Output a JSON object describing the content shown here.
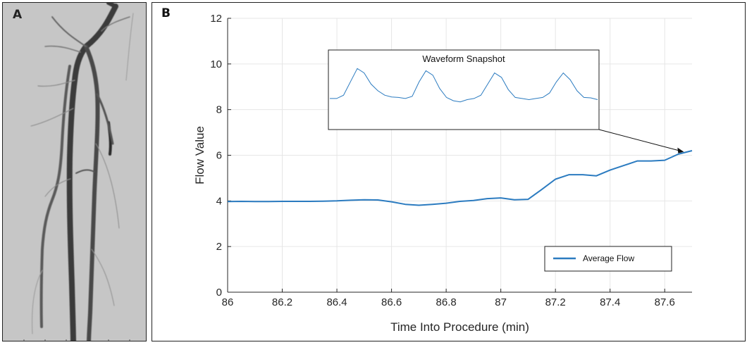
{
  "panel_a": {
    "label": "A"
  },
  "panel_b": {
    "label": "B"
  },
  "chart_data": {
    "type": "line",
    "title": "",
    "xlabel": "Time Into Procedure (min)",
    "ylabel": "Flow Value",
    "xlim": [
      86,
      87.7
    ],
    "ylim": [
      0,
      12
    ],
    "x_ticks": [
      86,
      86.2,
      86.4,
      86.6,
      86.8,
      87,
      87.2,
      87.4,
      87.6
    ],
    "x_tick_labels": [
      "86",
      "86.2",
      "86.4",
      "86.6",
      "86.8",
      "87",
      "87.2",
      "87.4",
      "87.6"
    ],
    "y_ticks": [
      0,
      2,
      4,
      6,
      8,
      10,
      12
    ],
    "y_tick_labels": [
      "0",
      "2",
      "4",
      "6",
      "8",
      "10",
      "12"
    ],
    "grid": true,
    "legend": {
      "position": "bottom-right",
      "entries": [
        "Average Flow"
      ]
    },
    "series": [
      {
        "name": "Average Flow",
        "color": "#2b7bc0",
        "x": [
          86.0,
          86.05,
          86.1,
          86.15,
          86.2,
          86.25,
          86.3,
          86.35,
          86.4,
          86.45,
          86.5,
          86.55,
          86.6,
          86.65,
          86.7,
          86.75,
          86.8,
          86.85,
          86.9,
          86.95,
          87.0,
          87.05,
          87.1,
          87.15,
          87.2,
          87.25,
          87.3,
          87.35,
          87.4,
          87.45,
          87.5,
          87.55,
          87.6,
          87.65,
          87.7
        ],
        "y": [
          3.97,
          3.98,
          3.97,
          3.97,
          3.98,
          3.98,
          3.98,
          3.99,
          4.0,
          4.03,
          4.05,
          4.04,
          3.96,
          3.85,
          3.81,
          3.85,
          3.9,
          3.98,
          4.02,
          4.1,
          4.13,
          4.05,
          4.07,
          4.5,
          4.95,
          5.15,
          5.15,
          5.1,
          5.35,
          5.55,
          5.75,
          5.75,
          5.78,
          6.05,
          6.2
        ]
      }
    ],
    "inset": {
      "title": "Waveform Snapshot",
      "color": "#2b7bc0",
      "y": [
        8.55,
        8.55,
        8.7,
        9.3,
        9.9,
        9.7,
        9.2,
        8.9,
        8.7,
        8.62,
        8.6,
        8.55,
        8.65,
        9.3,
        9.8,
        9.6,
        9.0,
        8.6,
        8.45,
        8.4,
        8.5,
        8.55,
        8.7,
        9.2,
        9.7,
        9.5,
        8.95,
        8.6,
        8.55,
        8.5,
        8.55,
        8.6,
        8.8,
        9.3,
        9.7,
        9.4,
        8.9,
        8.6,
        8.58,
        8.5
      ]
    }
  }
}
